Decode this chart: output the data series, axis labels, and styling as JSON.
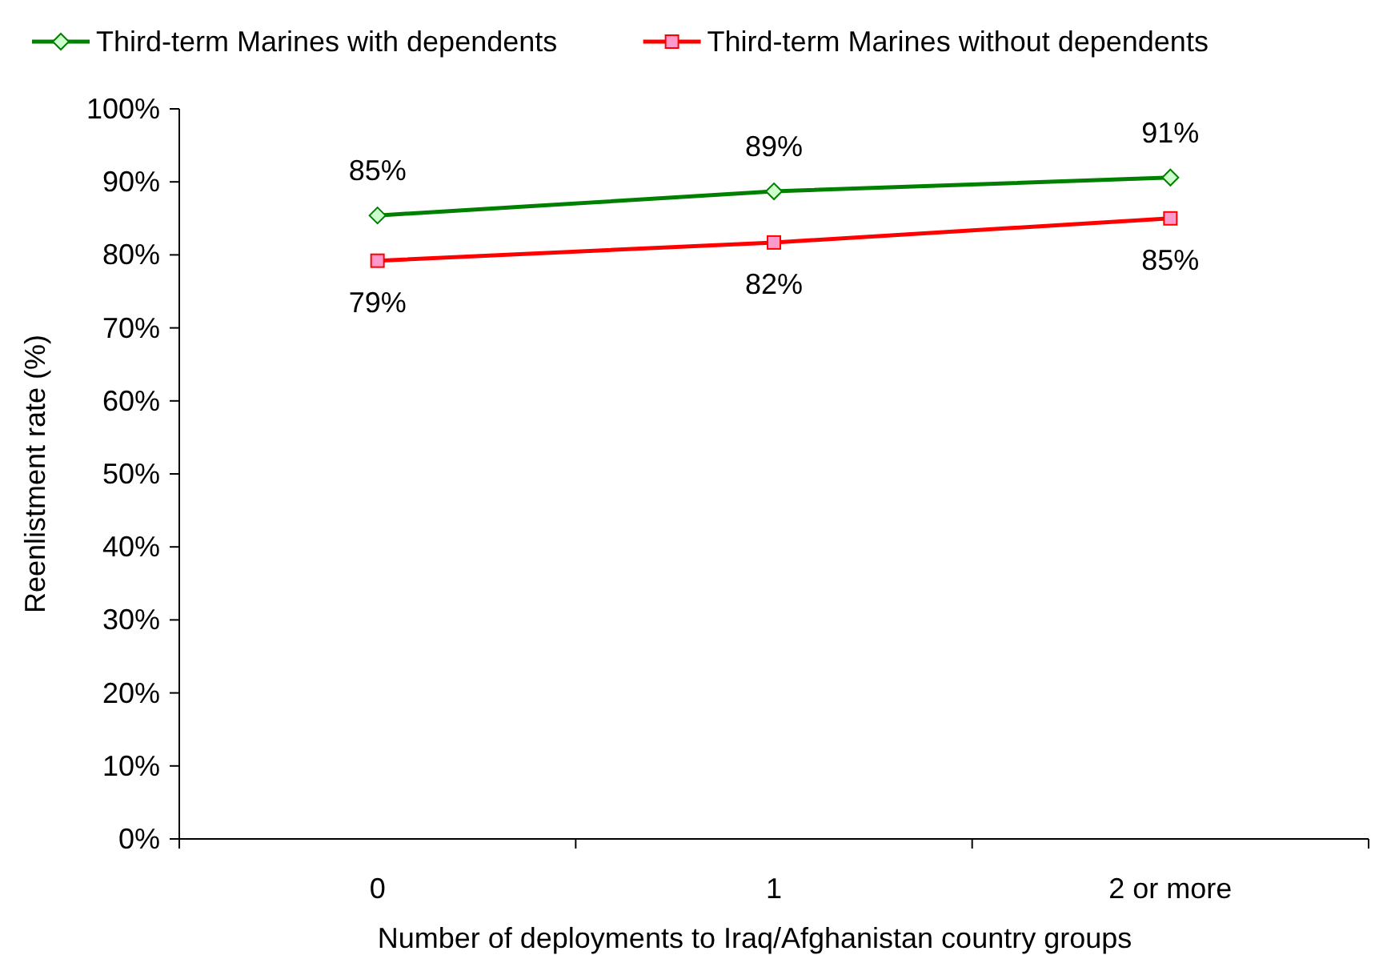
{
  "chart_data": {
    "type": "line",
    "xlabel": "Number of deployments to Iraq/Afghanistan country groups",
    "ylabel": "Reenlistment rate (%)",
    "categories": [
      "0",
      "1",
      "2 or more"
    ],
    "series": [
      {
        "name": "Third-term Marines with dependents",
        "color": "#008000",
        "marker": "diamond",
        "values": [
          85.4,
          88.7,
          90.6
        ],
        "value_labels": [
          "85%",
          "89%",
          "91%"
        ]
      },
      {
        "name": "Third-term Marines without dependents",
        "color": "#ff0000",
        "marker": "square",
        "values": [
          79.2,
          81.7,
          85.0
        ],
        "value_labels": [
          "79%",
          "82%",
          "85%"
        ]
      }
    ],
    "ylim": [
      0,
      100
    ],
    "yticks": [
      {
        "value": 0,
        "label": "0%"
      },
      {
        "value": 10,
        "label": "10%"
      },
      {
        "value": 20,
        "label": "20%"
      },
      {
        "value": 30,
        "label": "30%"
      },
      {
        "value": 40,
        "label": "40%"
      },
      {
        "value": 50,
        "label": "50%"
      },
      {
        "value": 60,
        "label": "60%"
      },
      {
        "value": 70,
        "label": "70%"
      },
      {
        "value": 80,
        "label": "80%"
      },
      {
        "value": 90,
        "label": "90%"
      },
      {
        "value": 100,
        "label": "100%"
      }
    ],
    "grid": false,
    "legend": "top",
    "line_style": "solid"
  }
}
